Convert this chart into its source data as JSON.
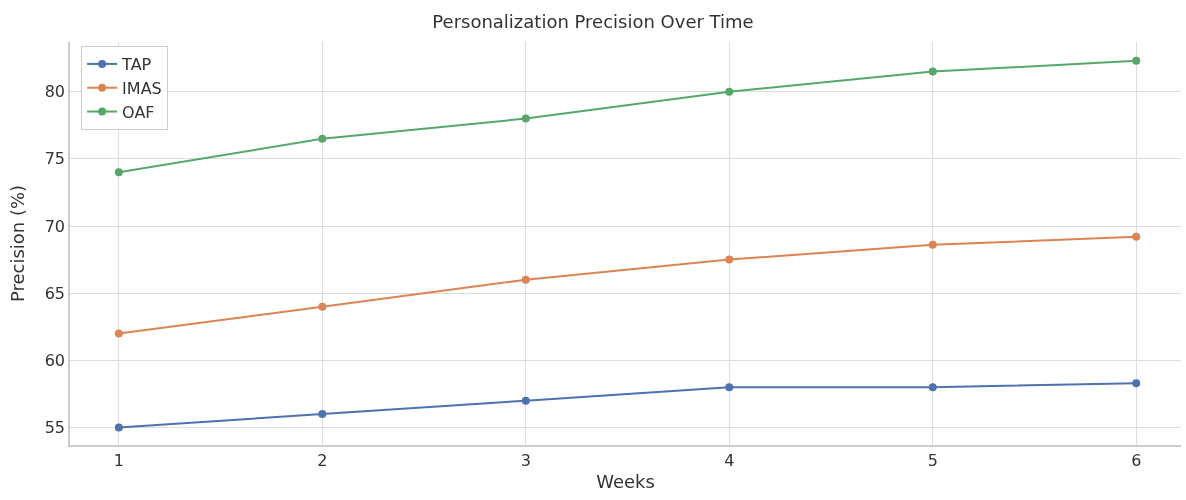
{
  "chart_data": {
    "type": "line",
    "title": "Personalization Precision Over Time",
    "xlabel": "Weeks",
    "ylabel": "Precision (%)",
    "x": [
      1,
      2,
      3,
      4,
      5,
      6
    ],
    "series": [
      {
        "name": "TAP",
        "color": "#4c72b0",
        "values": [
          55,
          56,
          57,
          58,
          58,
          58.3
        ]
      },
      {
        "name": "IMAS",
        "color": "#dd8452",
        "values": [
          62,
          64,
          66,
          67.5,
          68.6,
          69.2
        ]
      },
      {
        "name": "OAF",
        "color": "#55a868",
        "values": [
          74,
          76.5,
          78,
          80,
          81.5,
          82.3
        ]
      }
    ],
    "xlim": [
      0.76,
      6.22
    ],
    "xticks": [
      1,
      2,
      3,
      4,
      5,
      6
    ],
    "ylim": [
      53.7,
      83.7
    ],
    "yticks": [
      55,
      60,
      65,
      70,
      75,
      80
    ],
    "grid": true,
    "legend": "top left",
    "marker": "circle",
    "line_style": "solid"
  }
}
